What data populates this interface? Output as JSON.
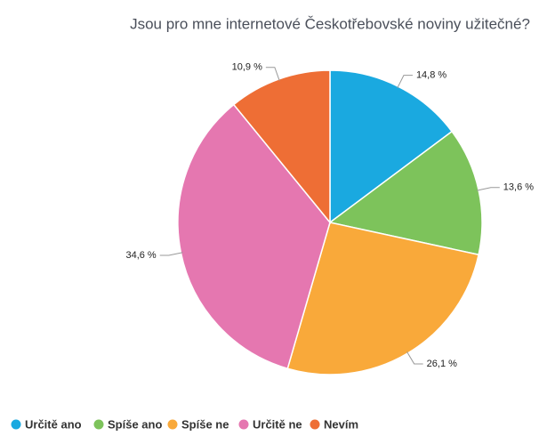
{
  "chart_data": {
    "type": "pie",
    "title": "Jsou pro mne internetové Českotřebovské noviny užitečné?",
    "categories": [
      "Určitě ano",
      "Spíše ano",
      "Spíše ne",
      "Určitě ne",
      "Nevím"
    ],
    "values": [
      14.8,
      13.6,
      26.1,
      34.6,
      10.9
    ],
    "value_labels": [
      "14,8 %",
      "13,6 %",
      "26,1 %",
      "34,6 %",
      "10,9 %"
    ],
    "colors": [
      "#1aa9e0",
      "#7dc35b",
      "#f9a93a",
      "#e577b0",
      "#ee6e35"
    ],
    "legend": "bottom-left"
  }
}
